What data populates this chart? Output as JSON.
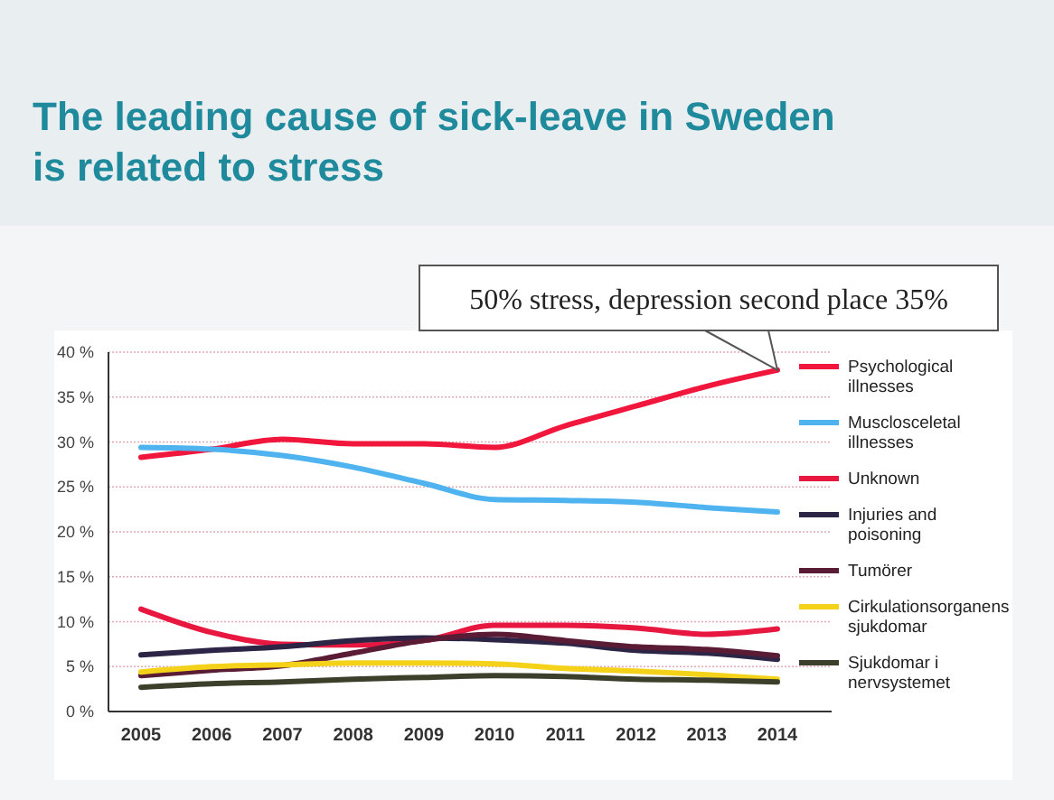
{
  "chart_data": {
    "type": "line",
    "title": "The leading cause of sick-leave in Sweden is related to stress",
    "categories": [
      "2005",
      "2006",
      "2007",
      "2008",
      "2009",
      "2010",
      "2011",
      "2012",
      "2013",
      "2014"
    ],
    "series": [
      {
        "name": "Psychological illnesses",
        "color": "#f0163c",
        "values": [
          28.3,
          29.2,
          30.3,
          29.8,
          29.8,
          29.4,
          31.8,
          34,
          36.2,
          38
        ]
      },
      {
        "name": "Musclosceletal illnesses",
        "color": "#4fb3f0",
        "values": [
          29.4,
          29.2,
          28.5,
          27.2,
          25.4,
          23.6,
          23.5,
          23.3,
          22.7,
          22.2
        ]
      },
      {
        "name": "Unknown",
        "color": "#e8173f",
        "values": [
          11.4,
          8.8,
          7.5,
          7.4,
          7.9,
          9.6,
          9.6,
          9.3,
          8.6,
          9.2
        ]
      },
      {
        "name": "Injuries and poisoning",
        "color": "#2c2545",
        "values": [
          6.3,
          6.8,
          7.2,
          7.9,
          8.2,
          8,
          7.6,
          6.8,
          6.5,
          5.8
        ]
      },
      {
        "name": "Tumörer",
        "color": "#5a1b35",
        "values": [
          4,
          4.6,
          5.1,
          6.5,
          7.9,
          8.6,
          7.9,
          7.2,
          6.9,
          6.2
        ]
      },
      {
        "name": "Cirkulationsorganens sjukdomar",
        "color": "#f5d21a",
        "values": [
          4.4,
          5,
          5.2,
          5.4,
          5.4,
          5.3,
          4.8,
          4.5,
          4.1,
          3.6
        ]
      },
      {
        "name": "Sjukdomar i nervsystemet",
        "color": "#3c3f2a",
        "values": [
          2.7,
          3.1,
          3.3,
          3.6,
          3.8,
          4,
          3.9,
          3.6,
          3.5,
          3.3
        ]
      }
    ],
    "ylim": [
      0,
      40
    ],
    "yticks": [
      {
        "value": 0,
        "label": "0 %"
      },
      {
        "value": 5,
        "label": "5 %"
      },
      {
        "value": 10,
        "label": "10 %"
      },
      {
        "value": 15,
        "label": "15 %"
      },
      {
        "value": 20,
        "label": "20 %"
      },
      {
        "value": 25,
        "label": "25 %"
      },
      {
        "value": 30,
        "label": "30 %"
      },
      {
        "value": 35,
        "label": "35 %"
      },
      {
        "value": 40,
        "label": "40 %"
      }
    ],
    "grid": "y",
    "legend": "right",
    "marker": "none",
    "line_style": "solid",
    "annotations": [
      {
        "text": "50% stress, depression second place 35%",
        "x": "2014",
        "y": 38
      }
    ]
  }
}
